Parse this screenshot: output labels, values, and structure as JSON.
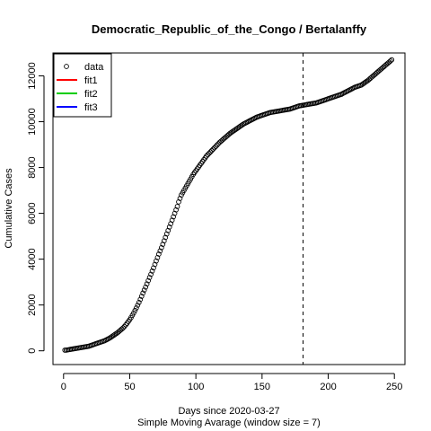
{
  "chart_data": {
    "type": "scatter",
    "title": "Democratic_Republic_of_the_Congo / Bertalanffy",
    "xlabel": "Days since 2020-03-27",
    "subtitle": "Simple Moving Avarage (window size = 7)",
    "ylabel": "Cumulative Cases",
    "xlim": [
      -8,
      258
    ],
    "ylim": [
      -600,
      13000
    ],
    "x_ticks": [
      0,
      50,
      100,
      150,
      200,
      250
    ],
    "y_ticks": [
      0,
      2000,
      4000,
      6000,
      8000,
      10000,
      12000
    ],
    "vline_x": 181,
    "legend_position": "top-left",
    "legend": [
      {
        "label": "data",
        "kind": "point",
        "color": "#000000"
      },
      {
        "label": "fit1",
        "kind": "line",
        "color": "#ff0000"
      },
      {
        "label": "fit2",
        "kind": "line",
        "color": "#00cd00"
      },
      {
        "label": "fit3",
        "kind": "line",
        "color": "#0000ff"
      }
    ],
    "series": [
      {
        "name": "data",
        "x_start": 1,
        "x_step": 1,
        "values": [
          30,
          30,
          40,
          50,
          60,
          70,
          80,
          90,
          100,
          110,
          120,
          130,
          140,
          150,
          160,
          170,
          180,
          190,
          200,
          220,
          240,
          260,
          280,
          300,
          320,
          340,
          360,
          380,
          400,
          420,
          440,
          470,
          500,
          530,
          560,
          600,
          640,
          680,
          720,
          760,
          800,
          850,
          900,
          950,
          1000,
          1060,
          1130,
          1200,
          1280,
          1360,
          1450,
          1550,
          1650,
          1760,
          1870,
          1990,
          2110,
          2240,
          2380,
          2520,
          2650,
          2780,
          2920,
          3060,
          3200,
          3340,
          3480,
          3620,
          3770,
          3920,
          4070,
          4220,
          4360,
          4500,
          4650,
          4800,
          4950,
          5100,
          5250,
          5400,
          5550,
          5700,
          5850,
          6000,
          6150,
          6300,
          6500,
          6650,
          6800,
          6900,
          7000,
          7100,
          7200,
          7300,
          7400,
          7500,
          7600,
          7700,
          7780,
          7860,
          7940,
          8020,
          8100,
          8180,
          8260,
          8340,
          8420,
          8500,
          8560,
          8620,
          8680,
          8740,
          8800,
          8860,
          8920,
          8980,
          9040,
          9100,
          9150,
          9200,
          9250,
          9300,
          9350,
          9400,
          9450,
          9500,
          9540,
          9580,
          9620,
          9660,
          9700,
          9740,
          9780,
          9820,
          9860,
          9900,
          9930,
          9960,
          9990,
          10020,
          10050,
          10080,
          10110,
          10140,
          10170,
          10200,
          10220,
          10240,
          10260,
          10280,
          10300,
          10320,
          10340,
          10360,
          10380,
          10400,
          10410,
          10420,
          10430,
          10440,
          10450,
          10460,
          10470,
          10480,
          10490,
          10500,
          10510,
          10520,
          10530,
          10540,
          10550,
          10570,
          10590,
          10610,
          10630,
          10650,
          10670,
          10690,
          10700,
          10710,
          10720,
          10730,
          10740,
          10750,
          10760,
          10770,
          10780,
          10790,
          10800,
          10810,
          10820,
          10840,
          10860,
          10880,
          10900,
          10920,
          10940,
          10960,
          10980,
          11000,
          11020,
          11040,
          11060,
          11080,
          11100,
          11120,
          11140,
          11160,
          11180,
          11200,
          11230,
          11260,
          11290,
          11320,
          11350,
          11380,
          11410,
          11440,
          11470,
          11500,
          11520,
          11540,
          11560,
          11580,
          11600,
          11640,
          11680,
          11720,
          11760,
          11800,
          11850,
          11900,
          11950,
          12000,
          12050,
          12100,
          12150,
          12200,
          12250,
          12300,
          12350,
          12400,
          12450,
          12500,
          12550,
          12600,
          12650,
          12700
        ]
      }
    ]
  }
}
